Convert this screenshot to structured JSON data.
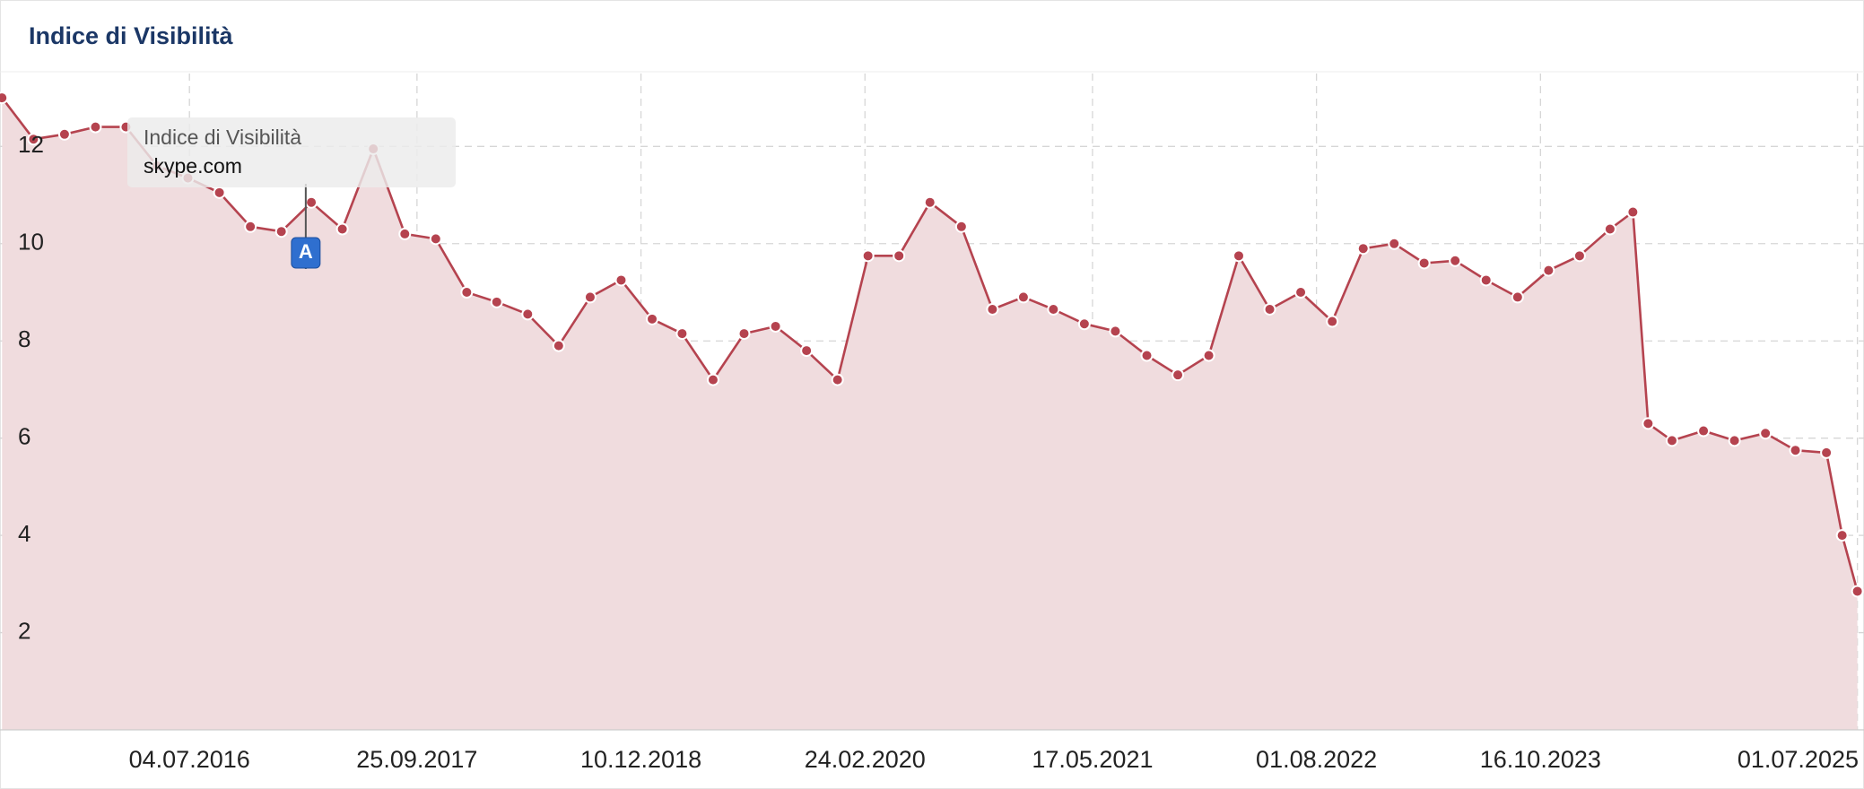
{
  "chart_data": {
    "type": "line",
    "title": "Indice di Visibilità",
    "series": [
      {
        "name": "skype.com",
        "color": "#b5434f",
        "area_color": "#f0dcde",
        "x": [
          "2015-07-01",
          "2015-09-01",
          "2015-11-01",
          "2016-01-01",
          "2016-03-01",
          "2016-05-01",
          "2016-07-01",
          "2016-09-01",
          "2016-11-01",
          "2017-01-01",
          "2017-03-01",
          "2017-05-01",
          "2017-07-01",
          "2017-09-01",
          "2017-11-01",
          "2018-01-01",
          "2018-03-01",
          "2018-05-01",
          "2018-07-01",
          "2018-09-01",
          "2018-11-01",
          "2019-01-01",
          "2019-03-01",
          "2019-05-01",
          "2019-07-01",
          "2019-09-01",
          "2019-11-01",
          "2020-01-01",
          "2020-03-01",
          "2020-05-01",
          "2020-07-01",
          "2020-09-01",
          "2020-11-01",
          "2021-01-01",
          "2021-03-01",
          "2021-05-01",
          "2021-07-01",
          "2021-09-01",
          "2021-11-01",
          "2022-01-01",
          "2022-03-01",
          "2022-05-01",
          "2022-07-01",
          "2022-09-01",
          "2022-11-01",
          "2023-01-01",
          "2023-03-01",
          "2023-05-01",
          "2023-07-01",
          "2023-09-01",
          "2023-11-01",
          "2024-01-01",
          "2024-03-01",
          "2024-04-15",
          "2024-05-15",
          "2024-07-01",
          "2024-09-01",
          "2024-11-01",
          "2025-01-01",
          "2025-03-01",
          "2025-05-01",
          "2025-06-01",
          "2025-07-01"
        ],
        "values": [
          13.0,
          12.15,
          12.25,
          12.4,
          12.4,
          11.6,
          11.35,
          11.05,
          10.35,
          10.25,
          10.85,
          10.3,
          11.95,
          10.2,
          10.1,
          9.0,
          8.8,
          8.55,
          7.9,
          8.9,
          9.25,
          8.45,
          8.15,
          7.2,
          8.15,
          8.3,
          7.8,
          7.2,
          9.75,
          9.75,
          10.85,
          10.35,
          8.65,
          8.9,
          8.65,
          8.35,
          8.2,
          7.7,
          7.3,
          7.7,
          9.75,
          8.65,
          9.0,
          8.4,
          9.9,
          10.0,
          9.6,
          9.65,
          9.25,
          8.9,
          9.45,
          9.75,
          10.3,
          10.65,
          6.3,
          5.95,
          6.15,
          5.95,
          6.1,
          5.75,
          5.7,
          4.0,
          2.85
        ]
      }
    ],
    "xlim": [
      "2015-06-27",
      "2025-07-14"
    ],
    "xticks": [
      {
        "value": "2016-07-04",
        "label": "04.07.2016"
      },
      {
        "value": "2017-09-25",
        "label": "25.09.2017"
      },
      {
        "value": "2018-12-10",
        "label": "10.12.2018"
      },
      {
        "value": "2020-02-24",
        "label": "24.02.2020"
      },
      {
        "value": "2021-05-17",
        "label": "17.05.2021"
      },
      {
        "value": "2022-08-01",
        "label": "01.08.2022"
      },
      {
        "value": "2023-10-16",
        "label": "16.10.2023"
      },
      {
        "value": "2025-07-01",
        "label": "01.07.2025"
      }
    ],
    "ylim": [
      0,
      13.5
    ],
    "yticks": [
      2,
      4,
      6,
      8,
      10,
      12
    ],
    "grid": true,
    "annotations": [
      {
        "label": "A",
        "x": "2017-02-18"
      }
    ]
  }
}
